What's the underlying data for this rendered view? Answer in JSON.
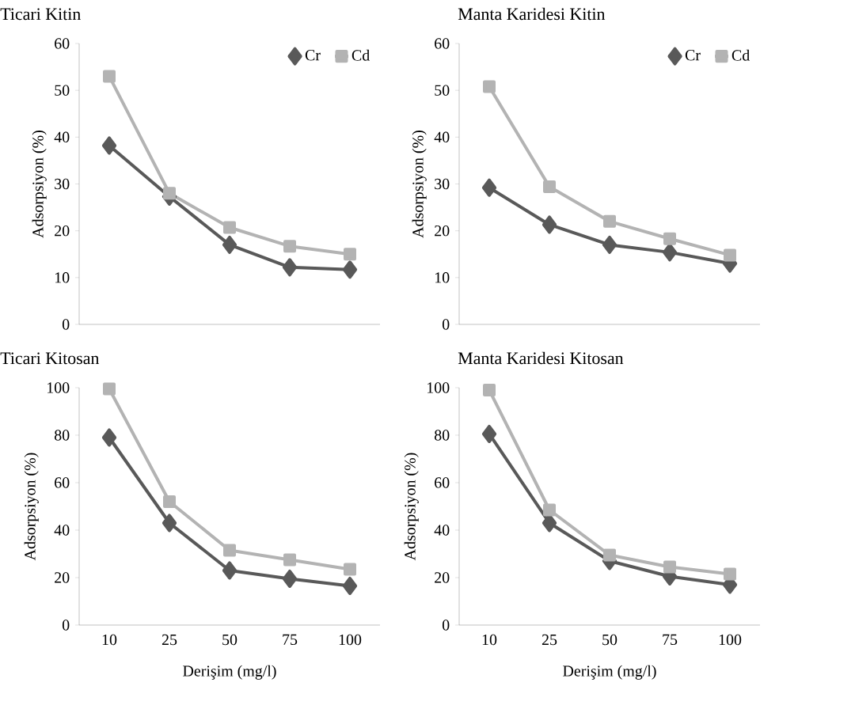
{
  "chart_data": [
    {
      "type": "line",
      "title": "Ticari Kitin",
      "ylabel": "Adsorpsiyon  (%)",
      "categories": [
        "10",
        "25",
        "50",
        "75",
        "100"
      ],
      "tick_labels": "y",
      "ylim": [
        0,
        60
      ],
      "yticks": [
        0,
        10,
        20,
        30,
        40,
        50,
        60
      ],
      "legend": "top right",
      "series": [
        {
          "name": "Cr",
          "color": "#595959",
          "marker": "diamond",
          "values": [
            38.2,
            27.3,
            17.0,
            12.2,
            11.7
          ]
        },
        {
          "name": "Cd",
          "color": "#b3b3b3",
          "marker": "square",
          "values": [
            53.0,
            28.0,
            20.7,
            16.7,
            15.0
          ]
        }
      ]
    },
    {
      "type": "line",
      "title": "Manta Karidesi Kitin",
      "ylabel": "Adsorpsiyon  (%)",
      "categories": [
        "10",
        "25",
        "50",
        "75",
        "100"
      ],
      "tick_labels": "y",
      "ylim": [
        0,
        60
      ],
      "yticks": [
        0,
        10,
        20,
        30,
        40,
        50,
        60
      ],
      "legend": "top right",
      "series": [
        {
          "name": "Cr",
          "color": "#595959",
          "marker": "diamond",
          "values": [
            29.2,
            21.3,
            17.0,
            15.4,
            13.0
          ]
        },
        {
          "name": "Cd",
          "color": "#b3b3b3",
          "marker": "square",
          "values": [
            50.8,
            29.4,
            22.0,
            18.3,
            14.8
          ]
        }
      ]
    },
    {
      "type": "line",
      "title": "Ticari Kitosan",
      "ylabel": "Adsorpsiyon  (%)",
      "xlabel": "Derişim (mg/l)",
      "categories": [
        "10",
        "25",
        "50",
        "75",
        "100"
      ],
      "ylim": [
        0,
        100
      ],
      "yticks": [
        0,
        20,
        40,
        60,
        80,
        100
      ],
      "series": [
        {
          "color": "#595959",
          "marker": "diamond",
          "values": [
            79,
            43,
            23,
            19.5,
            16.5
          ]
        },
        {
          "color": "#b3b3b3",
          "marker": "square",
          "values": [
            99.5,
            52,
            31.5,
            27.5,
            23.5
          ]
        }
      ]
    },
    {
      "type": "line",
      "title": "Manta Karidesi Kitosan",
      "ylabel": "Adsorpsiyon  (%)",
      "xlabel": "Derişim (mg/l)",
      "categories": [
        "10",
        "25",
        "50",
        "75",
        "100"
      ],
      "ylim": [
        0,
        100
      ],
      "yticks": [
        0,
        20,
        40,
        60,
        80,
        100
      ],
      "series": [
        {
          "color": "#595959",
          "marker": "diamond",
          "values": [
            80.5,
            43,
            27,
            20.5,
            17
          ]
        },
        {
          "color": "#b3b3b3",
          "marker": "square",
          "values": [
            99,
            48.5,
            29.5,
            24.5,
            21.5
          ]
        }
      ]
    }
  ]
}
